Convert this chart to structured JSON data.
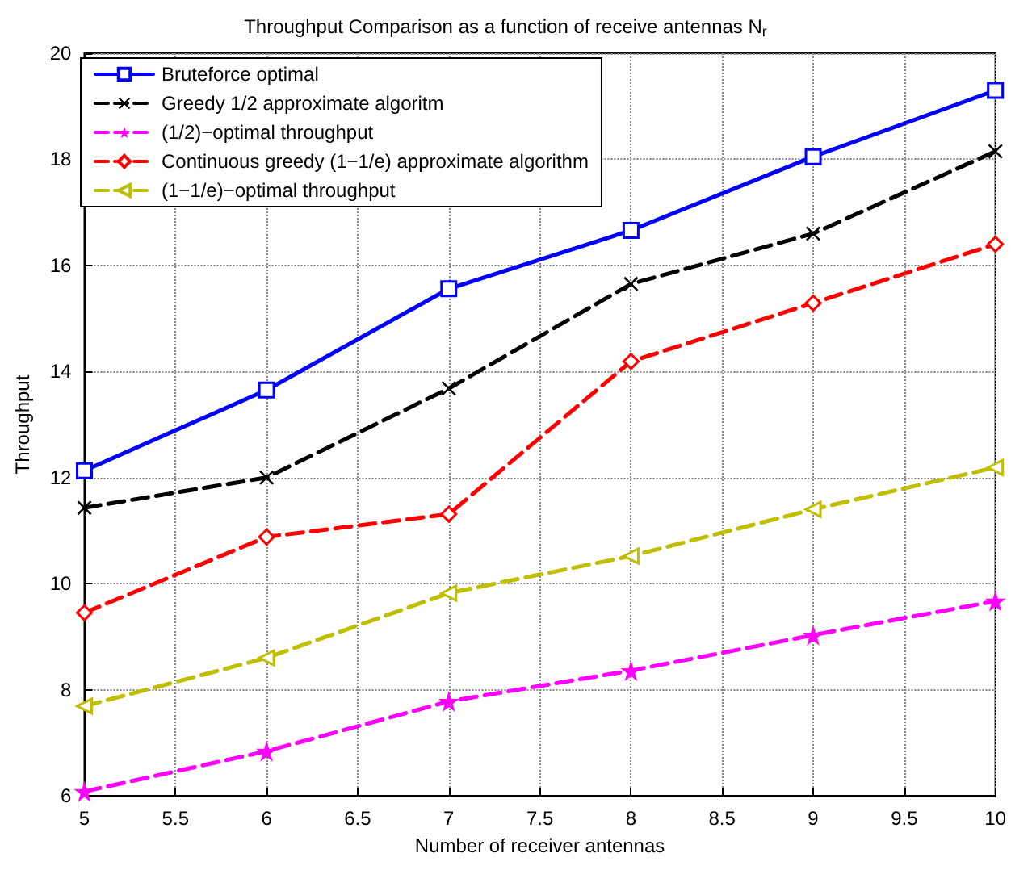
{
  "chart_data": {
    "type": "line",
    "title": "Throughput Comparison as a function of receive antennas N$_{r}$",
    "xlabel": "Number of receiver antennas",
    "ylabel": "Throughput",
    "x": [
      5,
      6,
      7,
      8,
      9,
      10
    ],
    "series": [
      {
        "name": "Bruteforce optimal",
        "color": "#0000ff",
        "marker": "square",
        "line_style": "solid",
        "values": [
          12.13,
          13.65,
          15.56,
          16.66,
          18.05,
          19.3
        ]
      },
      {
        "name": "Greedy 1/2 approximate algoritm",
        "color": "#000000",
        "marker": "cross",
        "line_style": "dashed",
        "values": [
          11.43,
          12.0,
          13.68,
          15.65,
          16.6,
          18.15
        ]
      },
      {
        "name": "(1/2)−optimal throughput",
        "color": "#ff00ff",
        "marker": "star",
        "line_style": "dashed",
        "values": [
          6.08,
          6.84,
          7.78,
          8.36,
          9.03,
          9.67
        ]
      },
      {
        "name": "Continuous greedy (1−1/e) approximate algorithm",
        "color": "#ff0000",
        "marker": "diamond",
        "line_style": "dashed",
        "values": [
          9.45,
          10.88,
          11.31,
          14.19,
          15.29,
          16.4
        ]
      },
      {
        "name": "(1−1/e)−optimal throughput",
        "color": "#bfbf00",
        "marker": "triangle",
        "line_style": "dashed",
        "values": [
          7.69,
          8.6,
          9.82,
          10.52,
          11.4,
          12.19
        ]
      }
    ],
    "xlim": [
      5,
      10
    ],
    "xticks": [
      5,
      5.5,
      6,
      6.5,
      7,
      7.5,
      8,
      8.5,
      9,
      9.5,
      10
    ],
    "ylim": [
      6,
      20
    ],
    "yticks": [
      6,
      8,
      10,
      12,
      14,
      16,
      18,
      20
    ],
    "grid": true,
    "legend": "top left"
  }
}
